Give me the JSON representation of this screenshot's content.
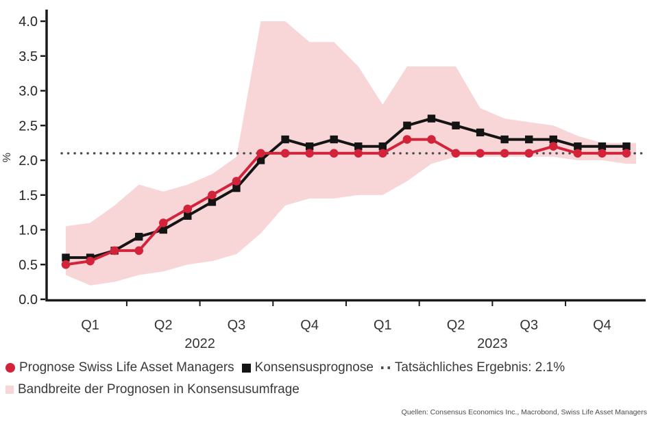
{
  "chart_data": {
    "type": "line",
    "title": "",
    "ylabel": "%",
    "ylim": [
      0.0,
      4.0
    ],
    "yticks": [
      "0.0",
      "0.5",
      "1.0",
      "1.5",
      "2.0",
      "2.5",
      "3.0",
      "3.5",
      "4.0"
    ],
    "grid": false,
    "x": {
      "granularity": "monthly",
      "n_points": 24,
      "quarter_labels": [
        "Q1",
        "Q2",
        "Q3",
        "Q4",
        "Q1",
        "Q2",
        "Q3",
        "Q4"
      ],
      "quarter_label_month_indices": [
        1,
        4,
        7,
        10,
        13,
        16,
        19,
        22
      ],
      "years": [
        {
          "label": "2022",
          "center_month_index": 5.5
        },
        {
          "label": "2023",
          "center_month_index": 17.5
        }
      ]
    },
    "series": [
      {
        "name": "Prognose Swiss Life Asset Managers",
        "color": "#d2233a",
        "marker": "circle",
        "values": [
          0.5,
          0.55,
          0.7,
          0.7,
          1.1,
          1.3,
          1.5,
          1.7,
          2.1,
          2.1,
          2.1,
          2.1,
          2.1,
          2.1,
          2.3,
          2.3,
          2.1,
          2.1,
          2.1,
          2.1,
          2.2,
          2.1,
          2.1,
          2.1
        ]
      },
      {
        "name": "Konsensusprognose",
        "color": "#141414",
        "marker": "square",
        "values": [
          0.6,
          0.6,
          0.7,
          0.9,
          1.0,
          1.2,
          1.4,
          1.6,
          2.0,
          2.3,
          2.2,
          2.3,
          2.2,
          2.2,
          2.5,
          2.6,
          2.5,
          2.4,
          2.3,
          2.3,
          2.3,
          2.2,
          2.2,
          2.2
        ]
      }
    ],
    "band": {
      "name": "Bandbreite der Prognosen in Konsensusumfrage",
      "color": "#f8d6d8",
      "upper": [
        1.05,
        1.1,
        1.35,
        1.65,
        1.55,
        1.65,
        1.8,
        2.05,
        4.0,
        4.0,
        3.7,
        3.7,
        3.35,
        2.8,
        3.35,
        3.35,
        3.35,
        2.75,
        2.6,
        2.55,
        2.5,
        2.35,
        2.25,
        2.25
      ],
      "lower": [
        0.35,
        0.2,
        0.25,
        0.35,
        0.4,
        0.5,
        0.55,
        0.65,
        0.95,
        1.35,
        1.45,
        1.45,
        1.5,
        1.5,
        1.7,
        1.95,
        2.05,
        2.05,
        2.05,
        2.05,
        2.05,
        2.0,
        2.0,
        1.95
      ]
    },
    "reference_line": {
      "label": "Tatsächliches Ergebnis: 2.1%",
      "value": 2.1,
      "style": "dotted",
      "color": "#4d4d4d"
    },
    "legend_position": "bottom"
  },
  "legend": {
    "items": [
      {
        "label": "Prognose Swiss Life Asset Managers",
        "marker": "circle",
        "color": "#d2233a"
      },
      {
        "label": "Konsensusprognose",
        "marker": "square",
        "color": "#141414"
      },
      {
        "label": "Tatsächliches Ergebnis: 2.1%",
        "marker": "dotted",
        "color": "#4d4d4d"
      },
      {
        "label": "Bandbreite der Prognosen in Konsensusumfrage",
        "marker": "band",
        "color": "#f8d6d8"
      }
    ]
  },
  "source": "Quellen: Consensus Economics Inc., Macrobond, Swiss Life Asset Managers"
}
